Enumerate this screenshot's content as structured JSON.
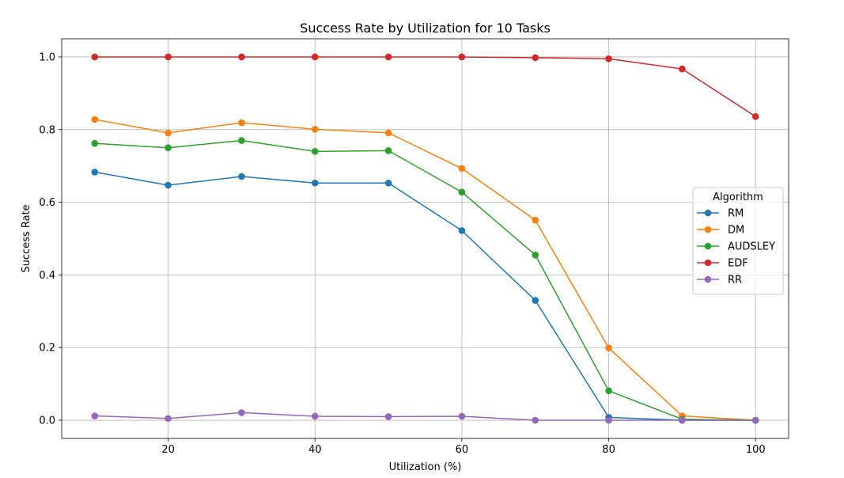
{
  "chart_data": {
    "type": "line",
    "title": "Success Rate by Utilization for 10 Tasks",
    "xlabel": "Utilization (%)",
    "ylabel": "Success Rate",
    "xlim": [
      5.5,
      104.5
    ],
    "ylim": [
      -0.05,
      1.05
    ],
    "xticks": [
      20,
      40,
      60,
      80,
      100
    ],
    "yticks": [
      0.0,
      0.2,
      0.4,
      0.6,
      0.8,
      1.0
    ],
    "xtick_labels": [
      "20",
      "40",
      "60",
      "80",
      "100"
    ],
    "ytick_labels": [
      "0.0",
      "0.2",
      "0.4",
      "0.6",
      "0.8",
      "1.0"
    ],
    "grid": true,
    "legend": {
      "title": "Algorithm",
      "placement": "center-right"
    },
    "x": [
      10,
      20,
      30,
      40,
      50,
      60,
      70,
      80,
      90,
      100
    ],
    "series": [
      {
        "name": "RM",
        "color": "#1f77b4",
        "values": [
          0.683,
          0.647,
          0.671,
          0.653,
          0.653,
          0.522,
          0.33,
          0.008,
          0.0,
          0.0
        ]
      },
      {
        "name": "DM",
        "color": "#ff7f0e",
        "values": [
          0.828,
          0.791,
          0.819,
          0.801,
          0.791,
          0.693,
          0.551,
          0.199,
          0.012,
          0.0
        ]
      },
      {
        "name": "AUDSLEY",
        "color": "#2ca02c",
        "values": [
          0.762,
          0.75,
          0.77,
          0.74,
          0.742,
          0.628,
          0.455,
          0.081,
          0.003,
          0.0
        ]
      },
      {
        "name": "EDF",
        "color": "#d62728",
        "values": [
          1.0,
          1.0,
          1.0,
          1.0,
          1.0,
          1.0,
          0.998,
          0.995,
          0.967,
          0.836
        ]
      },
      {
        "name": "RR",
        "color": "#9467bd",
        "values": [
          0.012,
          0.005,
          0.021,
          0.011,
          0.01,
          0.011,
          0.0,
          0.0,
          0.0,
          0.0
        ]
      }
    ]
  }
}
